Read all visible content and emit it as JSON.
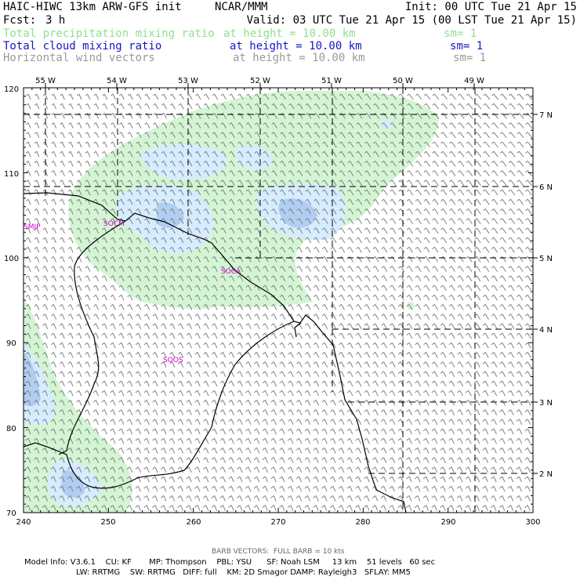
{
  "header": {
    "model_title": "HAIC-HIWC 13km ARW-GFS init",
    "org": "NCAR/MMM",
    "init": "Init: 00 UTC Tue 21 Apr 15",
    "fcst_label": "Fcst:",
    "fcst_value": "3 h",
    "valid": "Valid: 03 UTC Tue 21 Apr 15 (00 LST Tue 21 Apr 15)"
  },
  "fields": [
    {
      "name": "Total precipitation mixing ratio",
      "height": "at height = 10.00 km",
      "sm": "sm= 1",
      "color": "#8fe08f"
    },
    {
      "name": "Total cloud mixing ratio",
      "height": "at height = 10.00 km",
      "sm": "sm= 1",
      "color": "#1515c8"
    },
    {
      "name": "Horizontal wind vectors",
      "height": "at height = 10.00 km",
      "sm": "sm= 1",
      "color": "#9a9a9a"
    }
  ],
  "map": {
    "x_ticks": [
      "240",
      "250",
      "260",
      "270",
      "280",
      "290",
      "300"
    ],
    "y_ticks": [
      "70",
      "80",
      "90",
      "100",
      "110",
      "120"
    ],
    "lon_labels": [
      "55 W",
      "54 W",
      "53 W",
      "52 W",
      "51 W",
      "50 W",
      "49 W"
    ],
    "lat_labels": [
      "7 N",
      "6 N",
      "5 N",
      "4 N",
      "3 N",
      "2 N"
    ],
    "stations": [
      "SMJP",
      "SOCM",
      "SOCA",
      "SOOS"
    ],
    "colors": {
      "precip": "#d4f5d4",
      "cloud": "#d6ecff",
      "cloud_dense": "#b0cdf2",
      "border": "#000000",
      "barb": "#808080"
    }
  },
  "footer": {
    "barb_note": "BARB VECTORS:  FULL BARB = 10 kts",
    "model_info_1": "Model Info: V3.6.1    CU: KF       MP: Thompson    PBL: YSU      SF: Noah LSM     13 km    51 levels   60 sec",
    "model_info_2": "LW: RRTMG    SW: RRTMG   DIFF: full    KM: 2D Smagor DAMP: Rayleigh3   SFLAY: MM5"
  }
}
